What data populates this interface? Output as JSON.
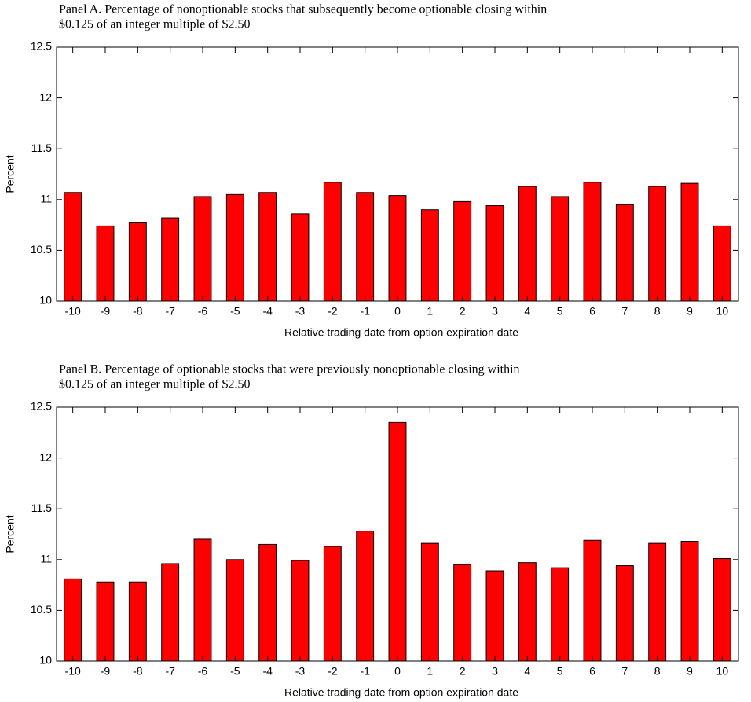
{
  "chart_data": [
    {
      "type": "bar",
      "title": [
        "Panel A.  Percentage of nonoptionable stocks that subsequently become optionable closing within",
        "$0.125 of an integer multiple of $2.50"
      ],
      "xlabel": "Relative trading date from option expiration date",
      "ylabel": "Percent",
      "categories": [
        "-10",
        "-9",
        "-8",
        "-7",
        "-6",
        "-5",
        "-4",
        "-3",
        "-2",
        "-1",
        "0",
        "1",
        "2",
        "3",
        "4",
        "5",
        "6",
        "7",
        "8",
        "9",
        "10"
      ],
      "values": [
        11.07,
        10.74,
        10.77,
        10.82,
        11.03,
        11.05,
        11.07,
        10.86,
        11.17,
        11.07,
        11.04,
        10.9,
        10.98,
        10.94,
        11.13,
        11.03,
        11.17,
        10.95,
        11.13,
        11.16,
        10.74
      ],
      "color": "#ff0000",
      "ylim": [
        10,
        12.5
      ],
      "yticks": [
        10,
        10.5,
        11,
        11.5,
        12,
        12.5
      ]
    },
    {
      "type": "bar",
      "title": [
        "Panel B.  Percentage of optionable stocks that were previously nonoptionable closing within",
        "$0.125 of an integer multiple of $2.50"
      ],
      "xlabel": "Relative trading date from option expiration date",
      "ylabel": "Percent",
      "categories": [
        "-10",
        "-9",
        "-8",
        "-7",
        "-6",
        "-5",
        "-4",
        "-3",
        "-2",
        "-1",
        "0",
        "1",
        "2",
        "3",
        "4",
        "5",
        "6",
        "7",
        "8",
        "9",
        "10"
      ],
      "values": [
        10.81,
        10.78,
        10.78,
        10.96,
        11.2,
        11.0,
        11.15,
        10.99,
        11.13,
        11.28,
        12.35,
        11.16,
        10.95,
        10.89,
        10.97,
        10.92,
        11.19,
        10.94,
        11.16,
        11.18,
        11.01
      ],
      "color": "#ff0000",
      "ylim": [
        10,
        12.5
      ],
      "yticks": [
        10,
        10.5,
        11,
        11.5,
        12,
        12.5
      ]
    }
  ]
}
